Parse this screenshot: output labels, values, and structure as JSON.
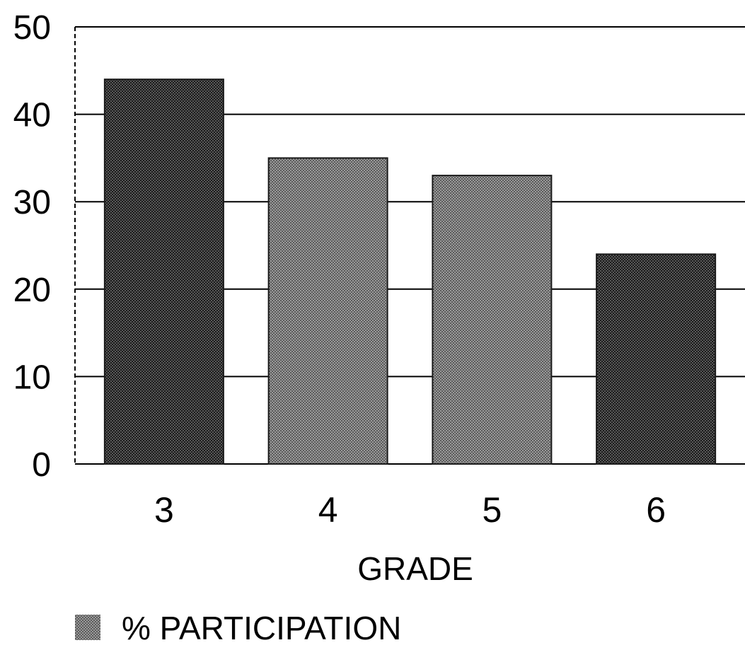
{
  "chart_data": {
    "type": "bar",
    "categories": [
      "3",
      "4",
      "5",
      "6"
    ],
    "series": [
      {
        "name": "% PARTICIPATION",
        "values": [
          44,
          35,
          33,
          24
        ]
      }
    ],
    "title": "",
    "xlabel": "GRADE",
    "ylabel": "",
    "ylim": [
      0,
      50
    ],
    "yticks": [
      "0",
      "10",
      "20",
      "30",
      "40",
      "50"
    ],
    "grid": true,
    "legend_position": "bottom-left",
    "colors": {
      "bar_fill": "#8a8a8a",
      "bar_fill_dark": "#4a4a4a",
      "gridline": "#000000",
      "axis": "#000000"
    }
  }
}
